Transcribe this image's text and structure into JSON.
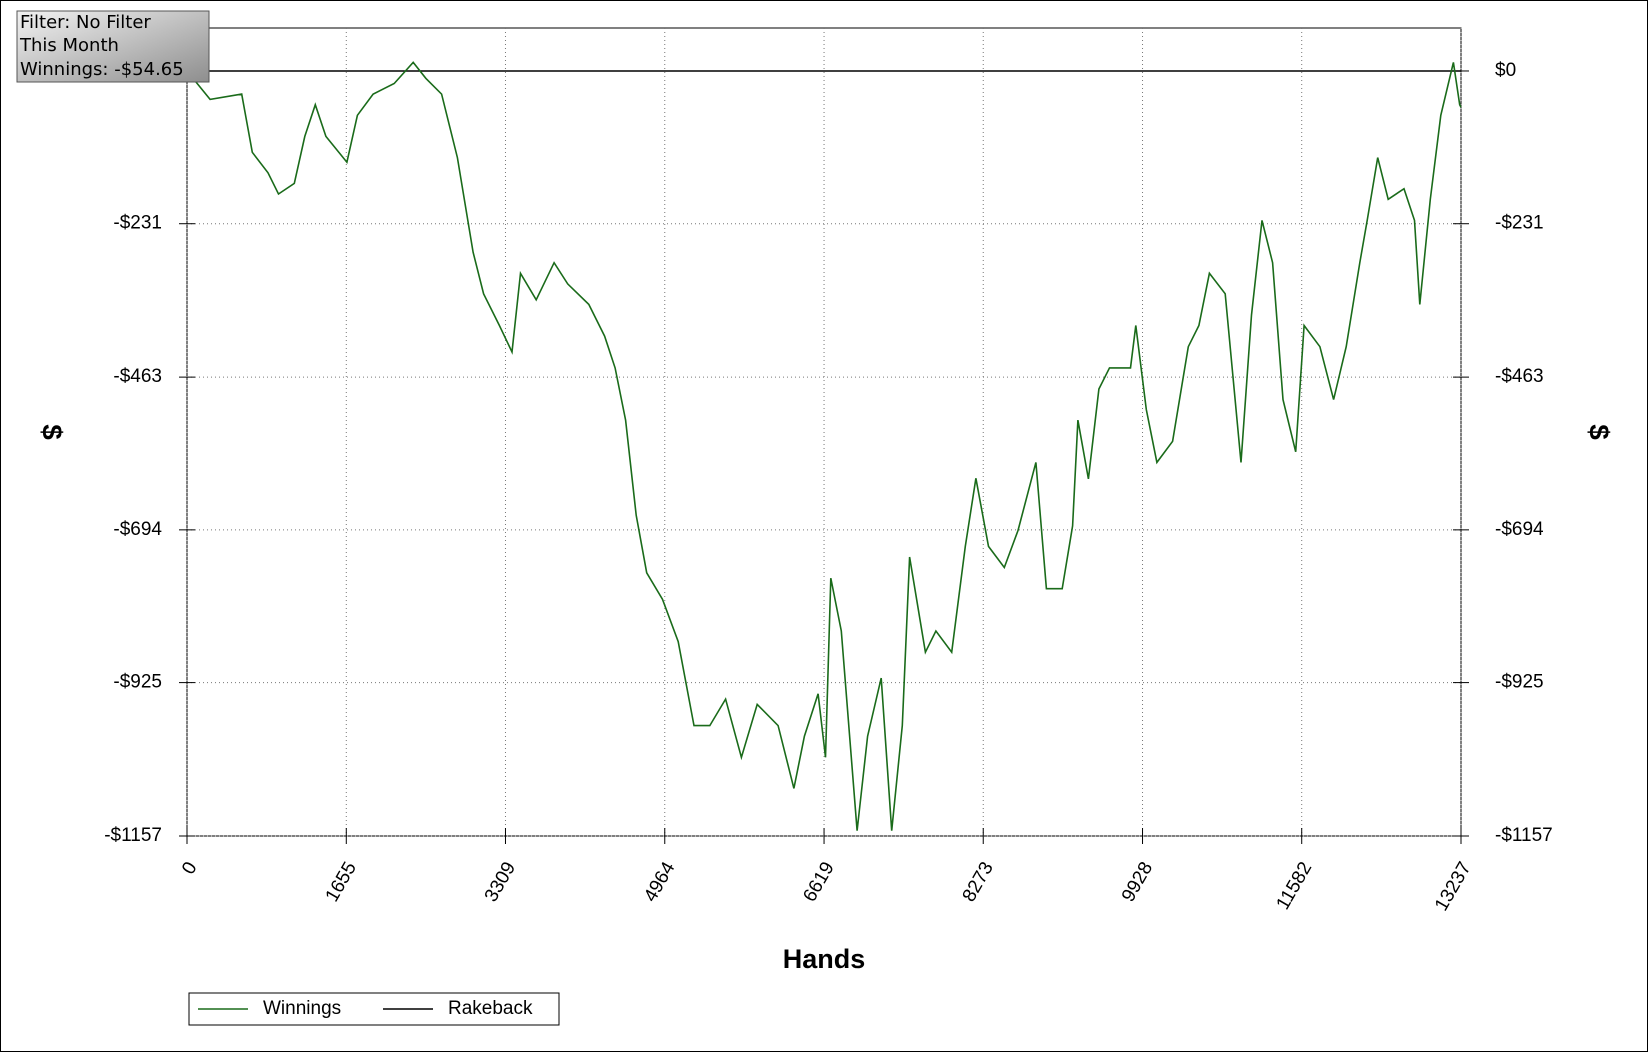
{
  "chart_data": {
    "type": "line",
    "annotations": [
      "Filter: No Filter",
      "This Month",
      "Winnings: -$54.65"
    ],
    "xlabel": "Hands",
    "ylabel": "$",
    "y2label": "$",
    "xlim": [
      0,
      13237
    ],
    "xticks": [
      0,
      1655,
      3309,
      4964,
      6619,
      8273,
      9928,
      11582,
      13237
    ],
    "ylim": [
      -1157,
      65
    ],
    "yticks": [
      {
        "value": 0,
        "label": "$0"
      },
      {
        "value": -231,
        "label": "-$231"
      },
      {
        "value": -463,
        "label": "-$463"
      },
      {
        "value": -694,
        "label": "-$694"
      },
      {
        "value": -925,
        "label": "-$925"
      },
      {
        "value": -1157,
        "label": "-$1157"
      }
    ],
    "grid": true,
    "series": [
      {
        "name": "Winnings",
        "color": "#1a6b1a",
        "x": [
          0,
          240,
          568,
          678,
          842,
          951,
          1115,
          1224,
          1333,
          1443,
          1661,
          1770,
          1934,
          2153,
          2350,
          2481,
          2645,
          2809,
          2973,
          3082,
          3246,
          3377,
          3465,
          3628,
          3814,
          3956,
          4175,
          4339,
          4448,
          4557,
          4667,
          4776,
          4940,
          5104,
          5268,
          5432,
          5596,
          5760,
          5924,
          6142,
          6306,
          6415,
          6557,
          6634,
          6689,
          6798,
          6962,
          7071,
          7213,
          7322,
          7432,
          7508,
          7672,
          7781,
          7945,
          8087,
          8197,
          8328,
          8492,
          8634,
          8820,
          8929,
          9093,
          9202,
          9257,
          9366,
          9475,
          9585,
          9803,
          9858,
          9967,
          10077,
          10241,
          10404,
          10514,
          10623,
          10787,
          10951,
          11060,
          11169,
          11279,
          11388,
          11519,
          11607,
          11771,
          11913,
          12044,
          12186,
          12262,
          12371,
          12481,
          12645,
          12754,
          12809,
          12918,
          13027,
          13158,
          13224,
          13237
        ],
        "values": [
          0,
          -43,
          -35,
          -123,
          -154,
          -186,
          -170,
          -99,
          -51,
          -99,
          -138,
          -67,
          -35,
          -19,
          13,
          -11,
          -35,
          -131,
          -274,
          -337,
          -385,
          -425,
          -306,
          -346,
          -290,
          -322,
          -353,
          -401,
          -449,
          -528,
          -672,
          -759,
          -799,
          -863,
          -990,
          -990,
          -950,
          -1038,
          -958,
          -990,
          -1085,
          -1006,
          -942,
          -1038,
          -767,
          -847,
          -1149,
          -1006,
          -918,
          -1149,
          -990,
          -735,
          -879,
          -847,
          -879,
          -719,
          -616,
          -719,
          -751,
          -695,
          -592,
          -783,
          -783,
          -688,
          -528,
          -617,
          -481,
          -449,
          -449,
          -385,
          -512,
          -592,
          -560,
          -417,
          -385,
          -306,
          -337,
          -592,
          -369,
          -226,
          -290,
          -497,
          -576,
          -385,
          -417,
          -497,
          -417,
          -290,
          -226,
          -131,
          -194,
          -178,
          -226,
          -353,
          -194,
          -67,
          13,
          -51,
          -55
        ]
      },
      {
        "name": "Rakeback",
        "color": "#000000",
        "x": [
          0,
          13237
        ],
        "values": [
          0,
          0
        ]
      }
    ]
  }
}
